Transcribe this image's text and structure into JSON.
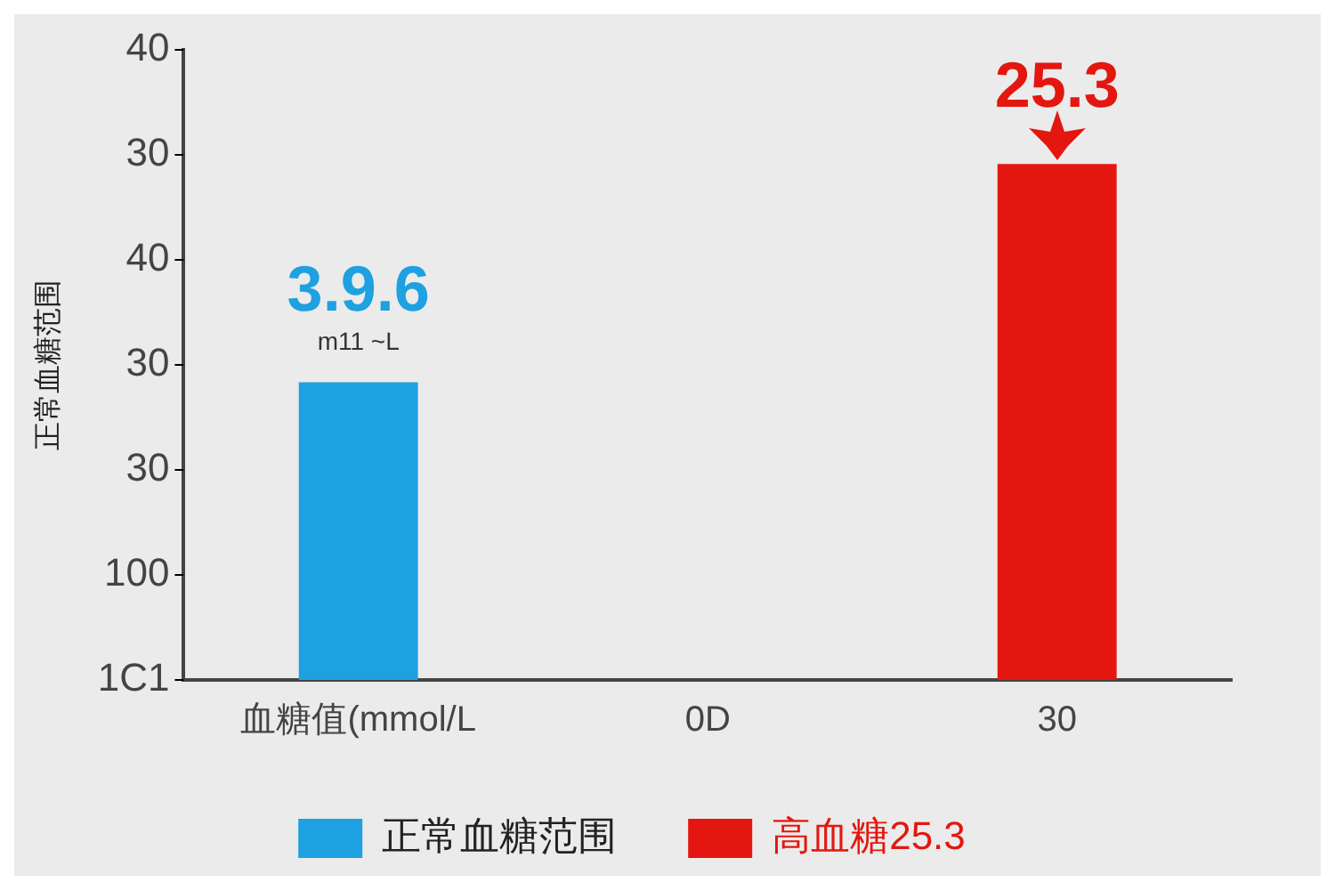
{
  "chart_data": {
    "type": "bar",
    "ylabel": "正常血糖范围",
    "categories": [
      "血糖值(mmol/L",
      "0D",
      "30"
    ],
    "ylim": [
      0,
      30.9
    ],
    "series": [
      {
        "name": "正常血糖范围",
        "color": "#1ea1e0",
        "values": [
          14.6,
          null,
          null
        ],
        "value_labels": [
          "3.9.6",
          null,
          null
        ]
      },
      {
        "name": "高血糖25.3",
        "color": "#e3170f",
        "values": [
          null,
          null,
          25.3
        ],
        "value_labels": [
          null,
          null,
          "25.3"
        ]
      }
    ],
    "annotations": [
      "m11 ~L",
      "40",
      "30",
      "40",
      "30",
      "30",
      "100",
      "1C1"
    ],
    "grid": false,
    "legend": "bottom"
  }
}
